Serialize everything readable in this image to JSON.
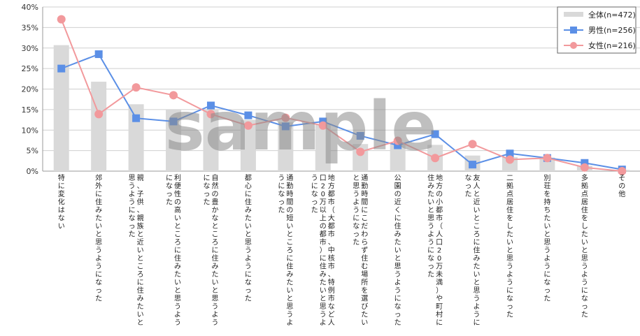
{
  "chart_data": {
    "type": "bar+line",
    "categories": [
      "特に変化はない",
      "郊外に住みたいと思うようになった",
      "親、子供、親族と近いところに住みたいと思うようになった",
      "利便性の高いところに住みたいと思うようになった",
      "自然の豊かなところに住みたいと思うようになった",
      "都心に住みたいと思うようになった",
      "通勤時間の短いところに住みたいと思うようになった",
      "地方都市（大都市、中核市、特例市など人口20万以上の都市）に住みたいと思うようになった",
      "通勤時間にこだわらず住む場所を選びたいと思うようになった",
      "公園の近くに住みたいと思うようになった",
      "地方の小都市（人口20万未満）や町村に住みたいと思うようになった",
      "友人と近いところに住みたいと思うようになった",
      "二拠点居住をしたいと思うようになった",
      "別荘を持ちたいと思うようになった",
      "多拠点居住をしたいと思うようになった",
      "その他"
    ],
    "series": [
      {
        "name": "全体(n=472)",
        "kind": "bar",
        "values": [
          30.7,
          21.8,
          16.3,
          15.0,
          14.9,
          12.5,
          11.9,
          11.5,
          6.6,
          6.8,
          6.4,
          3.8,
          3.4,
          3.3,
          1.3,
          0.3
        ]
      },
      {
        "name": "男性(n=256)",
        "kind": "line",
        "values": [
          25.0,
          28.5,
          12.9,
          12.1,
          16.0,
          13.6,
          10.9,
          12.1,
          8.6,
          6.3,
          9.0,
          1.6,
          4.3,
          3.2,
          2.0,
          0.4
        ]
      },
      {
        "name": "女性(n=216)",
        "kind": "line",
        "values": [
          37.0,
          13.9,
          20.4,
          18.5,
          13.9,
          11.1,
          13.0,
          11.1,
          4.7,
          7.4,
          3.2,
          6.6,
          2.8,
          3.2,
          0.9,
          0.0
        ]
      }
    ],
    "yticks": [
      "0%",
      "5%",
      "10%",
      "15%",
      "20%",
      "25%",
      "30%",
      "35%",
      "40%"
    ],
    "ylim": [
      0,
      40
    ],
    "grid": "horizontal",
    "legend_position": "top-right",
    "colors": {
      "bar": "#d9d9d9",
      "male": "#5b8fe6",
      "female": "#f2999c"
    },
    "watermark": "sample"
  }
}
